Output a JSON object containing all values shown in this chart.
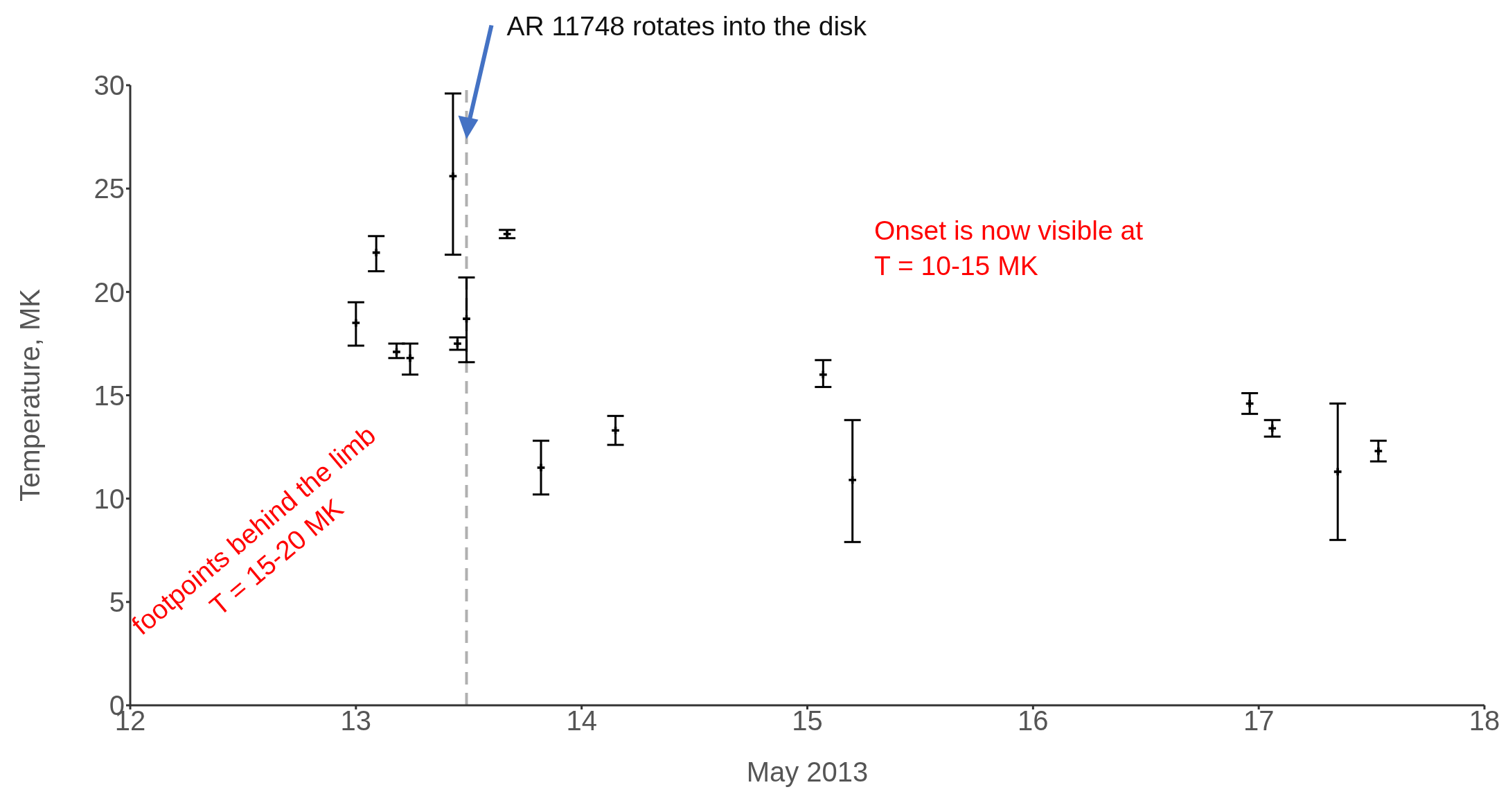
{
  "chart_data": {
    "type": "scatter",
    "xlabel": "May 2013",
    "ylabel": "Temperature, MK",
    "x": [
      13.0,
      13.09,
      13.18,
      13.24,
      13.43,
      13.45,
      13.49,
      13.67,
      13.82,
      14.15,
      15.07,
      15.2,
      16.96,
      17.06,
      17.35,
      17.53
    ],
    "values": [
      18.5,
      21.9,
      17.1,
      16.8,
      25.6,
      17.5,
      18.7,
      22.8,
      11.5,
      13.3,
      16.0,
      10.9,
      14.6,
      13.4,
      11.3,
      12.3
    ],
    "errors": [
      [
        17.4,
        19.5
      ],
      [
        21.0,
        22.7
      ],
      [
        16.8,
        17.5
      ],
      [
        16.0,
        17.5
      ],
      [
        21.8,
        29.6
      ],
      [
        17.2,
        17.8
      ],
      [
        16.6,
        20.7
      ],
      [
        22.6,
        23.0
      ],
      [
        10.2,
        12.8
      ],
      [
        12.6,
        14.0
      ],
      [
        15.4,
        16.7
      ],
      [
        7.9,
        13.8
      ],
      [
        14.1,
        15.1
      ],
      [
        13.0,
        13.8
      ],
      [
        8.0,
        14.6
      ],
      [
        11.8,
        12.8
      ]
    ],
    "color": "#000000",
    "marker": "cross",
    "xlim": [
      12,
      18
    ],
    "xticks": [
      12,
      13,
      14,
      15,
      16,
      17,
      18
    ],
    "ylim": [
      0,
      30
    ],
    "yticks": [
      0,
      5,
      10,
      15,
      20,
      25,
      30
    ],
    "ref_lines": [
      {
        "axis": "x",
        "value": 13.49,
        "color": "#b0b0b0",
        "line_style": "dashed"
      }
    ],
    "annotations": [
      "AR 11748 rotates into the disk",
      "Onset is now visible at\nT = 10-15 MK",
      "footpoints behind the limb\nT = 15-20 MK"
    ]
  }
}
